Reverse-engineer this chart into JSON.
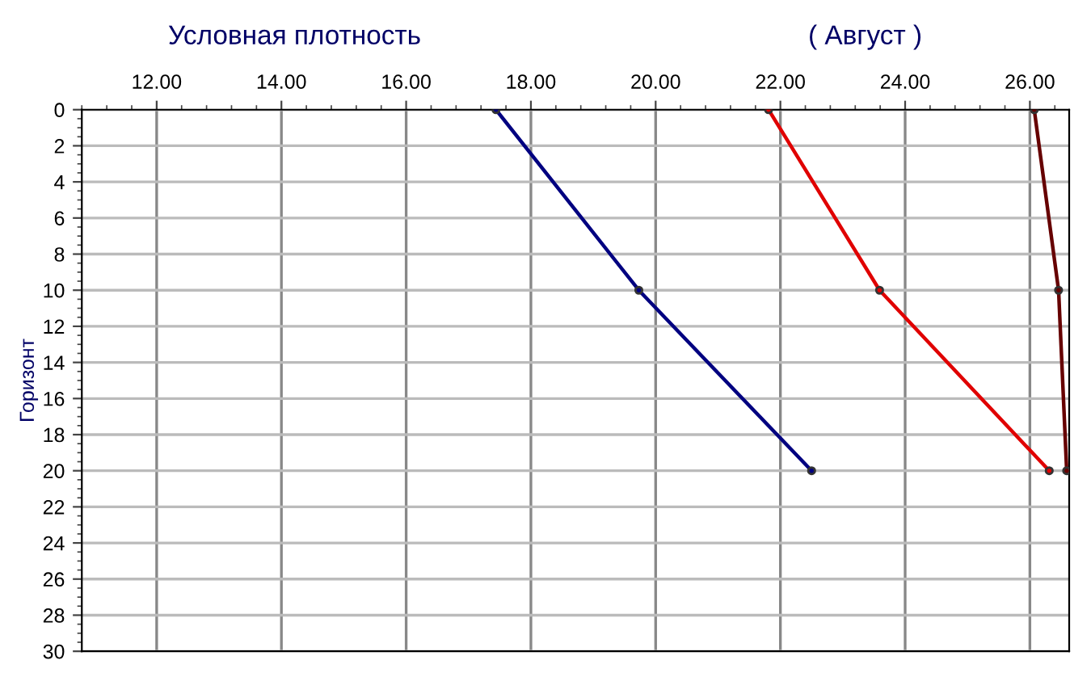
{
  "chart_data": {
    "type": "line",
    "title": "Условная плотность",
    "subtitle": "( Август )",
    "ylabel": "Горизонт",
    "series": [
      {
        "color": "#000080",
        "x": [
          17.44,
          19.73,
          22.5
        ],
        "values": [
          0,
          10,
          20
        ]
      },
      {
        "color": "#e00000",
        "x": [
          21.81,
          23.59,
          26.31
        ],
        "values": [
          0,
          10,
          20
        ]
      },
      {
        "color": "#660000",
        "x": [
          26.07,
          26.46,
          26.59
        ],
        "values": [
          0,
          10,
          20
        ]
      }
    ],
    "xlim": [
      10.8,
      26.63
    ],
    "xticks": [
      {
        "value": 12,
        "label": "12.00"
      },
      {
        "value": 14,
        "label": "14.00"
      },
      {
        "value": 16,
        "label": "16.00"
      },
      {
        "value": 18,
        "label": "18.00"
      },
      {
        "value": 20,
        "label": "20.00"
      },
      {
        "value": 22,
        "label": "22.00"
      },
      {
        "value": 24,
        "label": "24.00"
      },
      {
        "value": 26,
        "label": "26.00"
      }
    ],
    "ylim": [
      30,
      0
    ],
    "yticks": [
      0,
      2,
      4,
      6,
      8,
      10,
      12,
      14,
      16,
      18,
      20,
      22,
      24,
      26,
      28,
      30
    ],
    "grid": true,
    "marker": "circle",
    "line_style": "solid"
  }
}
